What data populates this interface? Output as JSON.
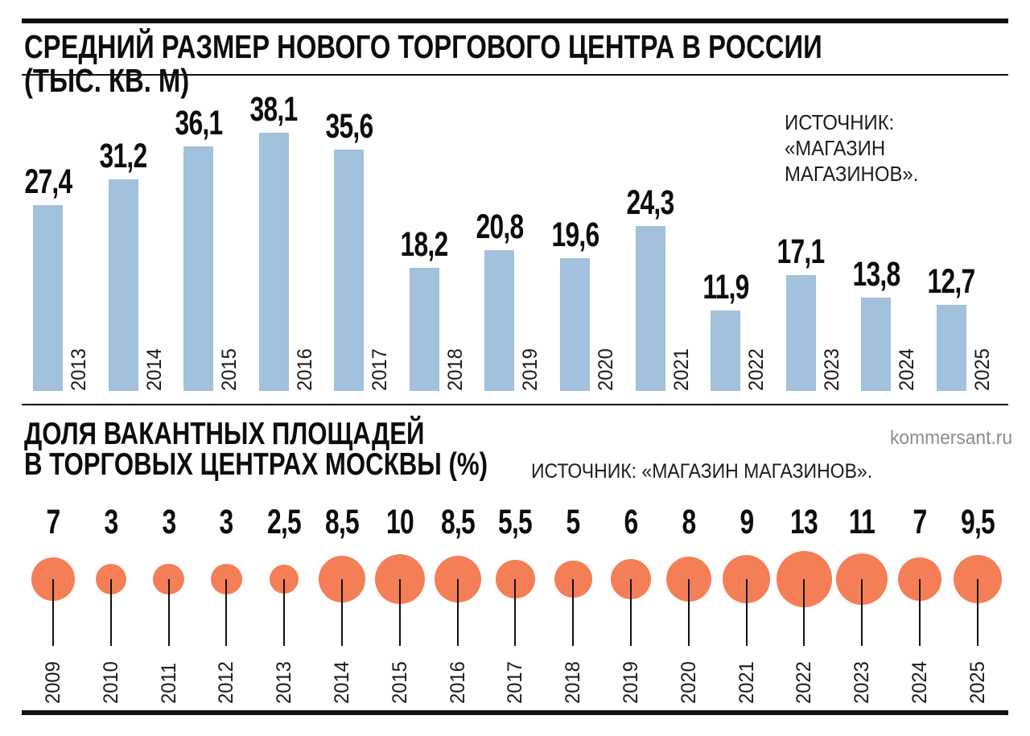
{
  "texts": {
    "title1": "СРЕДНИЙ РАЗМЕР НОВОГО ТОРГОВОГО ЦЕНТРА В РОССИИ (ТЫС. КВ. М)",
    "source1": "ИСТОЧНИК:\n«МАГАЗИН\nМАГАЗИНОВ».",
    "title2": "ДОЛЯ ВАКАНТНЫХ ПЛОЩАДЕЙ\nВ ТОРГОВЫХ ЦЕНТРАХ МОСКВЫ (%)",
    "source2": "ИСТОЧНИК: «МАГАЗИН МАГАЗИНОВ».",
    "watermark": "kommersant.ru"
  },
  "colors": {
    "bar": "#a1c1dc",
    "bubble": "#f47f56",
    "text": "#0d0d0d",
    "watermark": "#8d8d8d",
    "rule": "#111111"
  },
  "chart_data": [
    {
      "type": "bar",
      "title": "СРЕДНИЙ РАЗМЕР НОВОГО ТОРГОВОГО ЦЕНТРА В РОССИИ (ТЫС. КВ. М)",
      "source": "ИСТОЧНИК: «МАГАЗИН МАГАЗИНОВ».",
      "unit": "тыс. кв. м",
      "categories": [
        "2013",
        "2014",
        "2015",
        "2016",
        "2017",
        "2018",
        "2019",
        "2020",
        "2021",
        "2022",
        "2023",
        "2024",
        "2025"
      ],
      "values": [
        27.4,
        31.2,
        36.1,
        38.1,
        35.6,
        18.2,
        20.8,
        19.6,
        24.3,
        11.9,
        17.1,
        13.8,
        12.7
      ],
      "value_labels": [
        "27,4",
        "31,2",
        "36,1",
        "38,1",
        "35,6",
        "18,2",
        "20,8",
        "19,6",
        "24,3",
        "11,9",
        "17,1",
        "13,8",
        "12,7"
      ],
      "ylim": [
        0,
        40
      ],
      "grid": false,
      "legend": "none",
      "bar_color": "#a1c1dc"
    },
    {
      "type": "scatter",
      "subtype": "bubble-row",
      "title": "ДОЛЯ ВАКАНТНЫХ ПЛОЩАДЕЙ В ТОРГОВЫХ ЦЕНТРАХ МОСКВЫ (%)",
      "source": "ИСТОЧНИК: «МАГАЗИН МАГАЗИНОВ».",
      "unit": "%",
      "categories": [
        "2009",
        "2010",
        "2011",
        "2012",
        "2013",
        "2014",
        "2015",
        "2016",
        "2017",
        "2018",
        "2019",
        "2020",
        "2021",
        "2022",
        "2023",
        "2024",
        "2025"
      ],
      "values": [
        7,
        3,
        3,
        3,
        2.5,
        8.5,
        10,
        8.5,
        5.5,
        5,
        6,
        8,
        9,
        13,
        11,
        7,
        9.5
      ],
      "value_labels": [
        "7",
        "3",
        "3",
        "3",
        "2,5",
        "8,5",
        "10",
        "8,5",
        "5,5",
        "5",
        "6",
        "8",
        "9",
        "13",
        "11",
        "7",
        "9,5"
      ],
      "grid": false,
      "legend": "none",
      "bubble_color": "#f47f56",
      "size_encoding": "area proportional to value"
    }
  ]
}
